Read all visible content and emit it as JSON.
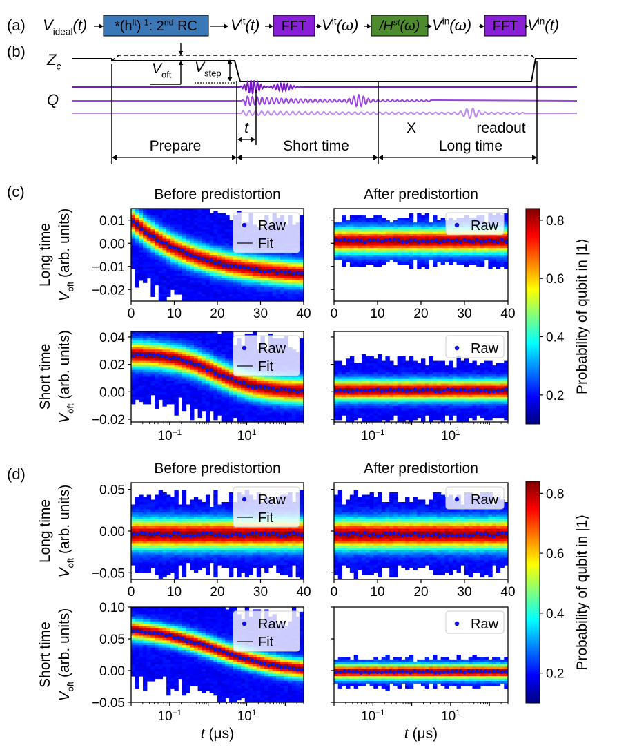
{
  "panel_labels": {
    "a": "(a)",
    "b": "(b)",
    "c": "(c)",
    "d": "(d)"
  },
  "flow": {
    "items": [
      {
        "kind": "text",
        "main": "V",
        "sub": "ideal",
        "sup": "",
        "tail": "(t)"
      },
      {
        "kind": "box",
        "color": "#3a78b8",
        "main": "*(h",
        "sup": "lt",
        "tail": ")",
        "sup2": "-1",
        "tail2": ": 2",
        "sup3": "nd",
        "tail3": " RC"
      },
      {
        "kind": "text",
        "main": "V",
        "sub": "",
        "sup": "lt",
        "tail": "(t)"
      },
      {
        "kind": "box",
        "color": "#8a1fd8",
        "main": "FFT",
        "sup": "",
        "tail": "",
        "sup2": "",
        "tail2": "",
        "sup3": "",
        "tail3": ""
      },
      {
        "kind": "text",
        "main": "V",
        "sub": "",
        "sup": "lt",
        "tail": "(ω)"
      },
      {
        "kind": "box",
        "color": "#4e8a2e",
        "main": "/H",
        "sup": "st",
        "tail": "(ω)",
        "sup2": "",
        "tail2": "",
        "sup3": "",
        "tail3": ""
      },
      {
        "kind": "text",
        "main": "V",
        "sub": "",
        "sup": "in",
        "tail": "(ω)"
      },
      {
        "kind": "box",
        "color": "#8a1fd8",
        "main": "FFT",
        "sup": "",
        "tail": "",
        "sup2": "",
        "tail2": "",
        "sup3": "",
        "tail3": ""
      },
      {
        "kind": "text",
        "main": "V",
        "sub": "",
        "sup": "in",
        "tail": "(t)"
      }
    ]
  },
  "timing": {
    "zc_label": "Z",
    "zc_sub": "c",
    "q_label": "Q",
    "voft_label": "V",
    "voft_sub": "oft",
    "vstep_label": "V",
    "vstep_sub": "step",
    "t_label": "t",
    "x_label": "X",
    "readout_label": "readout",
    "prepare_label": "Prepare",
    "short_label": "Short time",
    "long_label": "Long time",
    "colors": {
      "purple_dark": "#7b17c9",
      "purple_mid": "#9b45e0",
      "purple_light": "#c08af0"
    }
  },
  "colorbar": {
    "label": "Probability of qubit in |1⟩",
    "ticks_c": [
      "0.8",
      "0.6",
      "0.4",
      "0.2"
    ],
    "ticks_d": [
      "0.8",
      "0.6",
      "0.4",
      "0.2"
    ]
  },
  "chart_data": [
    {
      "id": "c_lt_before",
      "type": "heatmap",
      "title": "Before predistortion",
      "row_label": "Long time",
      "ylabel_main": "V",
      "ylabel_sub": "oft",
      "ylabel_tail": " (arb. units)",
      "x_scale": "linear",
      "xlim": [
        0,
        40
      ],
      "ylim": [
        -0.025,
        0.015
      ],
      "xticks": [
        0,
        10,
        20,
        30,
        40
      ],
      "xtick_labels": [
        "0",
        "10",
        "20",
        "30",
        "40"
      ],
      "yticks": [
        0.01,
        0.0,
        -0.01,
        -0.02
      ],
      "ytick_labels": [
        "0.01",
        "0.00",
        "−0.01",
        "−0.02"
      ],
      "legend": [
        "Raw",
        "Fit"
      ],
      "model": {
        "kind": "exp_lin",
        "A": 0.025,
        "tau": 15.0,
        "C": -0.015
      },
      "band": {
        "peak_width": 0.0035,
        "spread": 0.02
      }
    },
    {
      "id": "c_lt_after",
      "type": "heatmap",
      "title": "After predistortion",
      "row_label": "",
      "x_scale": "linear",
      "xlim": [
        0,
        40
      ],
      "ylim": [
        -0.025,
        0.015
      ],
      "xticks": [
        0,
        10,
        20,
        30,
        40
      ],
      "xtick_labels": [
        "0",
        "10",
        "20",
        "30",
        "40"
      ],
      "legend": [
        "Raw"
      ],
      "model": {
        "kind": "const",
        "C": 0.001
      },
      "band": {
        "peak_width": 0.0035,
        "spread": 0.009
      }
    },
    {
      "id": "c_st_before",
      "type": "heatmap",
      "title": "",
      "row_label": "Short time",
      "ylabel_main": "V",
      "ylabel_sub": "oft",
      "ylabel_tail": " (arb. units)",
      "x_scale": "log",
      "xlim": [
        0.01,
        300
      ],
      "ylim": [
        -0.022,
        0.044
      ],
      "xticks": [
        0.1,
        10
      ],
      "xtick_labels": [
        "10^-1",
        "10^1"
      ],
      "yticks": [
        0.04,
        0.02,
        0.0,
        -0.02
      ],
      "ytick_labels": [
        "0.04",
        "0.02",
        "0.00",
        "−0.02"
      ],
      "legend": [
        "Raw",
        "Fit"
      ],
      "model": {
        "kind": "log_decay",
        "A": 0.024,
        "C": 0.0,
        "k": 0.45
      },
      "band": {
        "peak_width": 0.006,
        "spread": 0.03
      }
    },
    {
      "id": "c_st_after",
      "type": "heatmap",
      "title": "",
      "row_label": "",
      "x_scale": "log",
      "xlim": [
        0.01,
        300
      ],
      "ylim": [
        -0.022,
        0.044
      ],
      "xticks": [
        0.1,
        10
      ],
      "xtick_labels": [
        "10^-1",
        "10^1"
      ],
      "legend": [
        "Raw"
      ],
      "model": {
        "kind": "const",
        "C": 0.001
      },
      "band": {
        "peak_width": 0.005,
        "spread": 0.02
      }
    },
    {
      "id": "d_lt_before",
      "type": "heatmap",
      "title": "Before predistortion",
      "row_label": "Long time",
      "ylabel_main": "V",
      "ylabel_sub": "oft",
      "ylabel_tail": " (arb. units)",
      "x_scale": "linear",
      "xlim": [
        0,
        40
      ],
      "ylim": [
        -0.058,
        0.058
      ],
      "xticks": [
        0,
        10,
        20,
        30,
        40
      ],
      "xtick_labels": [
        "0",
        "10",
        "20",
        "30",
        "40"
      ],
      "yticks": [
        0.05,
        0.0,
        -0.05
      ],
      "ytick_labels": [
        "0.05",
        "0.00",
        "−0.05"
      ],
      "legend": [
        "Raw",
        "Fit"
      ],
      "model": {
        "kind": "const",
        "C": -0.004
      },
      "band": {
        "peak_width": 0.012,
        "spread": 0.04
      }
    },
    {
      "id": "d_lt_after",
      "type": "heatmap",
      "title": "After predistortion",
      "row_label": "",
      "x_scale": "linear",
      "xlim": [
        0,
        40
      ],
      "ylim": [
        -0.058,
        0.058
      ],
      "xticks": [
        0,
        10,
        20,
        30,
        40
      ],
      "xtick_labels": [
        "0",
        "10",
        "20",
        "30",
        "40"
      ],
      "legend": [
        "Raw"
      ],
      "model": {
        "kind": "const",
        "C": -0.004
      },
      "band": {
        "peak_width": 0.012,
        "spread": 0.04
      }
    },
    {
      "id": "d_st_before",
      "type": "heatmap",
      "title": "",
      "row_label": "Short time",
      "ylabel_main": "V",
      "ylabel_sub": "oft",
      "ylabel_tail": " (arb. units)",
      "xlabel_main": "t",
      "xlabel_tail": " (μs)",
      "x_scale": "log",
      "xlim": [
        0.01,
        300
      ],
      "ylim": [
        -0.05,
        0.1
      ],
      "xticks": [
        0.1,
        10
      ],
      "xtick_labels": [
        "10^-1",
        "10^1"
      ],
      "yticks": [
        0.1,
        0.05,
        0.0,
        -0.05
      ],
      "ytick_labels": [
        "0.10",
        "0.05",
        "0.00",
        "−0.05"
      ],
      "legend": [
        "Raw",
        "Fit"
      ],
      "model": {
        "kind": "log_decay",
        "A": 0.063,
        "C": -0.003,
        "k": 0.28
      },
      "band": {
        "peak_width": 0.01,
        "spread": 0.07
      }
    },
    {
      "id": "d_st_after",
      "type": "heatmap",
      "title": "",
      "row_label": "",
      "xlabel_main": "t",
      "xlabel_tail": " (μs)",
      "x_scale": "log",
      "xlim": [
        0.01,
        300
      ],
      "ylim": [
        -0.05,
        0.1
      ],
      "xticks": [
        0.1,
        10
      ],
      "xtick_labels": [
        "10^-1",
        "10^1"
      ],
      "legend": [
        "Raw"
      ],
      "model": {
        "kind": "const",
        "C": -0.002
      },
      "band": {
        "peak_width": 0.008,
        "spread": 0.02
      }
    }
  ]
}
